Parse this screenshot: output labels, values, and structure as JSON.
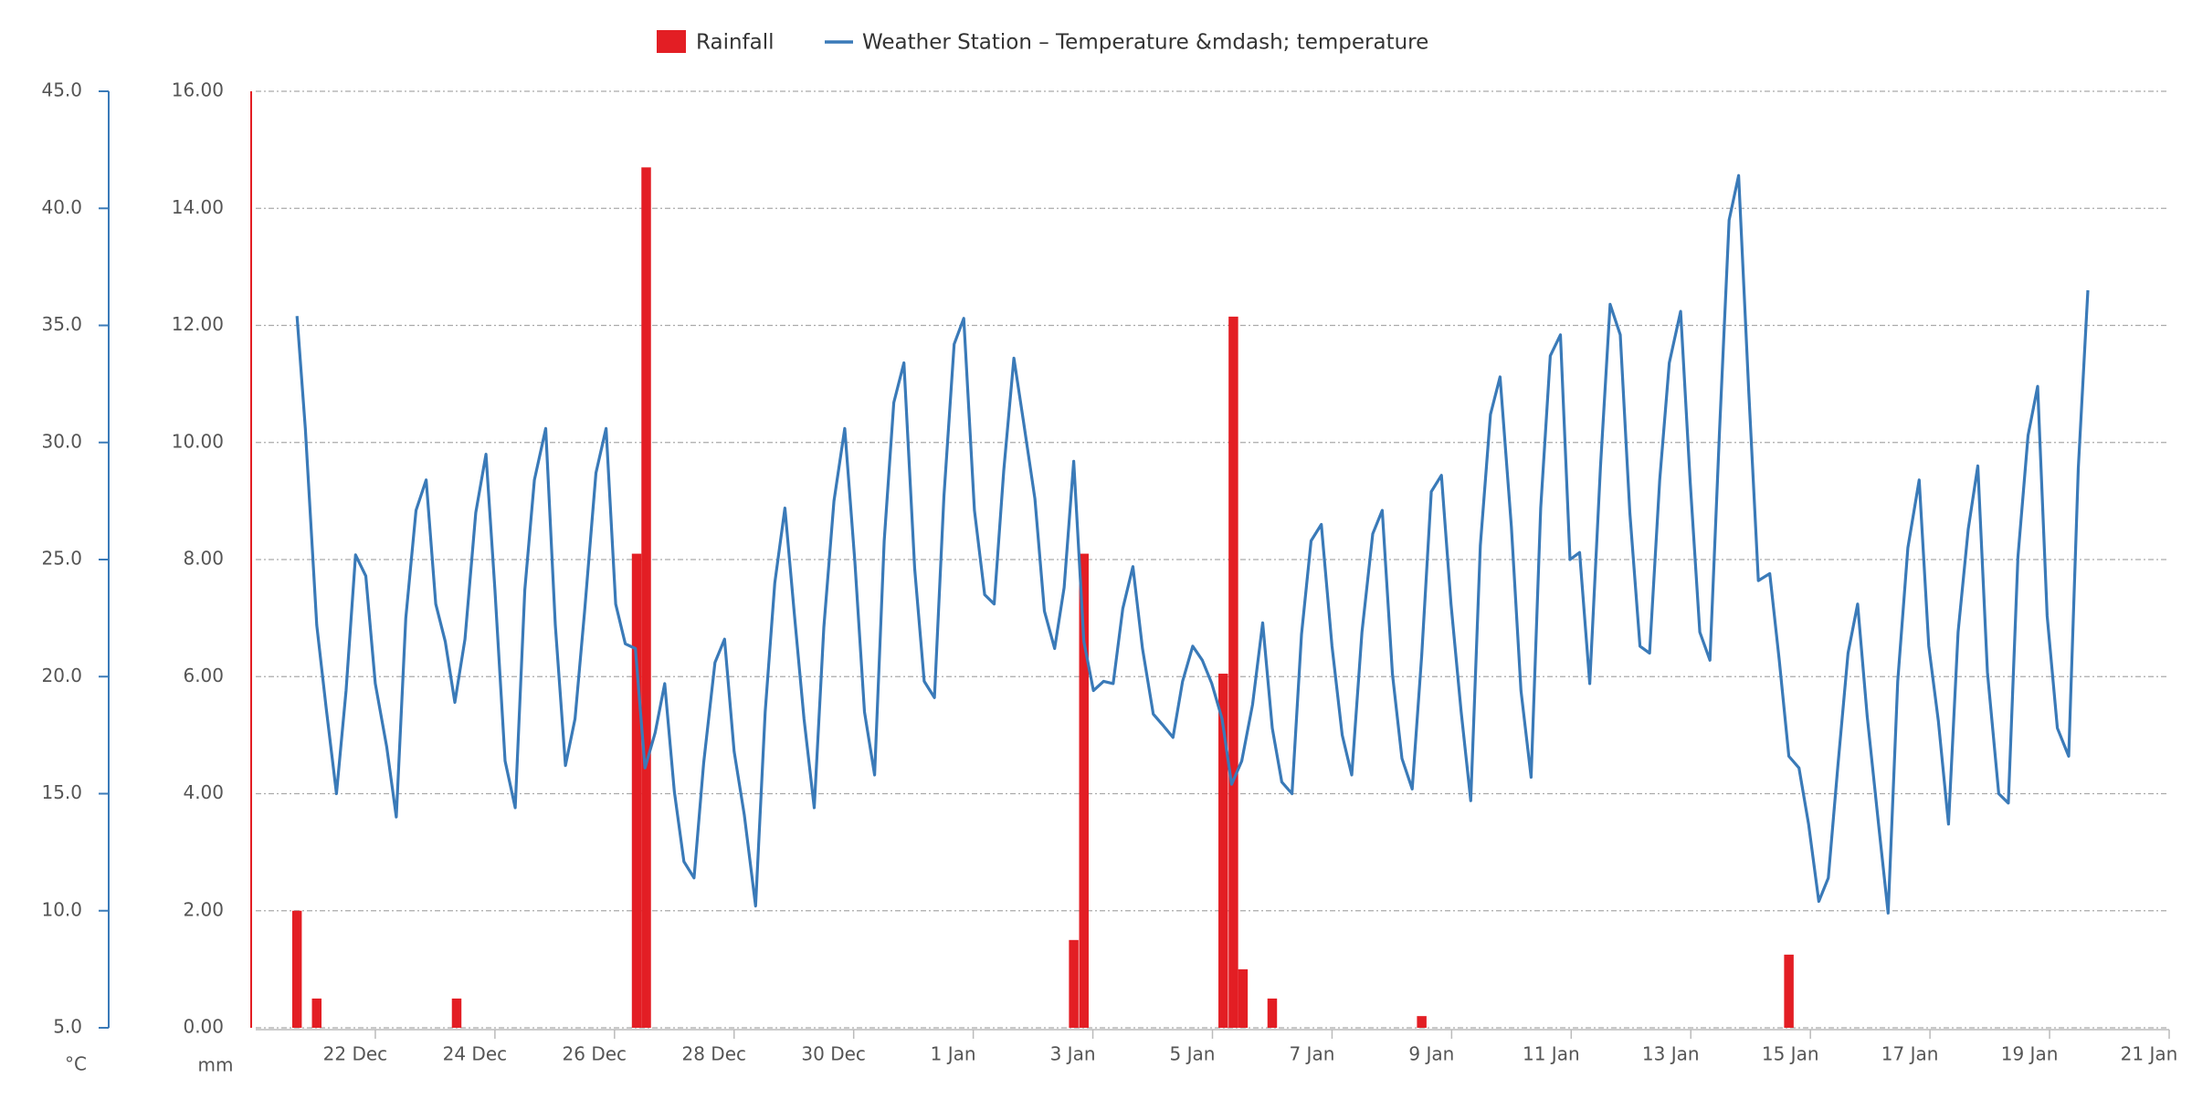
{
  "chart_data": {
    "type": "bar_line",
    "y_label": "mm",
    "y2_label": "°C",
    "xlim": [
      20,
      52
    ],
    "xticks": [
      {
        "value": 22,
        "label": "22 Dec"
      },
      {
        "value": 24,
        "label": "24 Dec"
      },
      {
        "value": 26,
        "label": "26 Dec"
      },
      {
        "value": 28,
        "label": "28 Dec"
      },
      {
        "value": 30,
        "label": "30 Dec"
      },
      {
        "value": 32,
        "label": "1 Jan"
      },
      {
        "value": 34,
        "label": "3 Jan"
      },
      {
        "value": 36,
        "label": "5 Jan"
      },
      {
        "value": 38,
        "label": "7 Jan"
      },
      {
        "value": 40,
        "label": "9 Jan"
      },
      {
        "value": 42,
        "label": "11 Jan"
      },
      {
        "value": 44,
        "label": "13 Jan"
      },
      {
        "value": 46,
        "label": "15 Jan"
      },
      {
        "value": 48,
        "label": "17 Jan"
      },
      {
        "value": 50,
        "label": "19 Jan"
      },
      {
        "value": 52,
        "label": "21 Jan"
      }
    ],
    "ylim": [
      0,
      16
    ],
    "yticks": [
      {
        "value": 0,
        "label": "0.00"
      },
      {
        "value": 2,
        "label": "2.00"
      },
      {
        "value": 4,
        "label": "4.00"
      },
      {
        "value": 6,
        "label": "6.00"
      },
      {
        "value": 8,
        "label": "8.00"
      },
      {
        "value": 10,
        "label": "10.00"
      },
      {
        "value": 12,
        "label": "12.00"
      },
      {
        "value": 14,
        "label": "14.00"
      },
      {
        "value": 16,
        "label": "16.00"
      }
    ],
    "y2lim": [
      5,
      45
    ],
    "y2ticks": [
      {
        "value": 5,
        "label": "5.0"
      },
      {
        "value": 10,
        "label": "10.0"
      },
      {
        "value": 15,
        "label": "15.0"
      },
      {
        "value": 20,
        "label": "20.0"
      },
      {
        "value": 25,
        "label": "25.0"
      },
      {
        "value": 30,
        "label": "30.0"
      },
      {
        "value": 35,
        "label": "35.0"
      },
      {
        "value": 40,
        "label": "40.0"
      },
      {
        "value": 45,
        "label": "45.0"
      }
    ],
    "grid": true,
    "series": [
      {
        "name": "Rainfall",
        "type": "bar",
        "color": "#e31e24",
        "x": [
          20.69,
          21.02,
          23.36,
          26.37,
          26.53,
          33.68,
          33.85,
          36.18,
          36.35,
          36.51,
          37.0,
          39.5,
          45.64
        ],
        "values": [
          2.0,
          0.5,
          0.5,
          8.1,
          14.7,
          1.5,
          8.1,
          6.05,
          12.15,
          1.0,
          0.5,
          0.2,
          1.25
        ]
      },
      {
        "name": "Weather Station – Temperature &mdash; temperature",
        "type": "line",
        "color": "#3a7ab8",
        "axis": "y2",
        "x": [
          20.69,
          20.83,
          21.02,
          21.18,
          21.35,
          21.51,
          21.67,
          21.84,
          22.0,
          22.19,
          22.35,
          22.51,
          22.68,
          22.85,
          23.01,
          23.17,
          23.33,
          23.5,
          23.68,
          23.85,
          24.0,
          24.17,
          24.34,
          24.5,
          24.66,
          24.85,
          25.01,
          25.18,
          25.34,
          25.5,
          25.69,
          25.86,
          26.02,
          26.18,
          26.35,
          26.51,
          26.68,
          26.84,
          27.0,
          27.16,
          27.33,
          27.49,
          27.68,
          27.84,
          28.0,
          28.17,
          28.36,
          28.52,
          28.68,
          28.85,
          29.01,
          29.17,
          29.34,
          29.5,
          29.67,
          29.85,
          30.02,
          30.18,
          30.35,
          30.51,
          30.67,
          30.84,
          31.02,
          31.18,
          31.35,
          31.51,
          31.68,
          31.84,
          32.02,
          32.19,
          32.35,
          32.51,
          32.68,
          32.84,
          33.03,
          33.19,
          33.36,
          33.52,
          33.68,
          33.85,
          34.01,
          34.18,
          34.34,
          34.5,
          34.67,
          34.83,
          35.01,
          35.18,
          35.34,
          35.5,
          35.67,
          35.83,
          35.99,
          36.16,
          36.32,
          36.49,
          36.67,
          36.84,
          37.0,
          37.16,
          37.33,
          37.49,
          37.65,
          37.82,
          38.0,
          38.17,
          38.33,
          38.5,
          38.68,
          38.84,
          39.01,
          39.17,
          39.34,
          39.5,
          39.66,
          39.83,
          39.99,
          40.16,
          40.32,
          40.48,
          40.65,
          40.81,
          41.0,
          41.16,
          41.33,
          41.49,
          41.65,
          41.82,
          41.98,
          42.14,
          42.31,
          42.49,
          42.65,
          42.82,
          42.98,
          43.15,
          43.31,
          43.48,
          43.64,
          43.83,
          43.99,
          44.15,
          44.32,
          44.48,
          44.64,
          44.8,
          44.97,
          45.13,
          45.32,
          45.48,
          45.64,
          45.81,
          45.97,
          46.14,
          46.3,
          46.46,
          46.63,
          46.79,
          46.95,
          47.14,
          47.3,
          47.46,
          47.63,
          47.82,
          47.98,
          48.14,
          48.31,
          48.47,
          48.64,
          48.8,
          48.96,
          49.15,
          49.31,
          49.47,
          49.64,
          49.8,
          49.96,
          50.13,
          50.32,
          50.48,
          50.64
        ],
        "values": [
          35.4,
          30.6,
          22.2,
          18.6,
          15.0,
          19.4,
          25.2,
          24.3,
          19.7,
          17.0,
          14.0,
          22.5,
          27.1,
          28.4,
          23.1,
          21.5,
          18.9,
          21.6,
          27.0,
          29.5,
          23.7,
          16.4,
          14.4,
          23.7,
          28.4,
          30.6,
          22.2,
          16.2,
          18.2,
          22.8,
          28.7,
          30.6,
          23.1,
          21.4,
          21.2,
          16.1,
          17.6,
          19.7,
          15.1,
          12.1,
          11.4,
          16.3,
          20.6,
          21.6,
          16.8,
          14.1,
          10.2,
          18.5,
          24.0,
          27.2,
          22.6,
          18.2,
          14.4,
          22.1,
          27.5,
          30.6,
          24.9,
          18.5,
          15.8,
          25.8,
          31.7,
          33.4,
          24.6,
          19.8,
          19.1,
          27.7,
          34.2,
          35.3,
          27.1,
          23.5,
          23.1,
          28.8,
          33.6,
          30.9,
          27.6,
          22.8,
          21.2,
          23.8,
          29.2,
          21.5,
          19.4,
          19.8,
          19.7,
          22.9,
          24.7,
          21.2,
          18.4,
          17.9,
          17.4,
          19.8,
          21.3,
          20.7,
          19.7,
          18.2,
          15.4,
          16.4,
          18.8,
          22.3,
          17.8,
          15.5,
          15.0,
          21.8,
          25.8,
          26.5,
          21.3,
          17.5,
          15.8,
          21.9,
          26.1,
          27.1,
          20.1,
          16.5,
          15.2,
          20.9,
          27.9,
          28.6,
          23.1,
          18.5,
          14.7,
          25.6,
          31.2,
          32.8,
          26.4,
          19.4,
          15.7,
          27.2,
          33.7,
          34.6,
          25.0,
          25.3,
          19.7,
          29.0,
          35.9,
          34.6,
          27.0,
          21.3,
          21.0,
          28.4,
          33.4,
          35.6,
          28.3,
          21.9,
          20.7,
          30.5,
          39.5,
          41.4,
          32.1,
          24.1,
          24.4,
          20.7,
          16.6,
          16.1,
          13.7,
          10.4,
          11.4,
          16.2,
          21.0,
          23.1,
          18.3,
          13.7,
          9.9,
          19.8,
          25.5,
          28.4,
          21.3,
          18.1,
          13.7,
          21.9,
          26.3,
          29.0,
          20.2,
          15.0,
          14.6,
          25.1,
          30.3,
          32.4,
          22.6,
          17.8,
          16.6,
          28.9,
          36.5
        ]
      }
    ]
  }
}
